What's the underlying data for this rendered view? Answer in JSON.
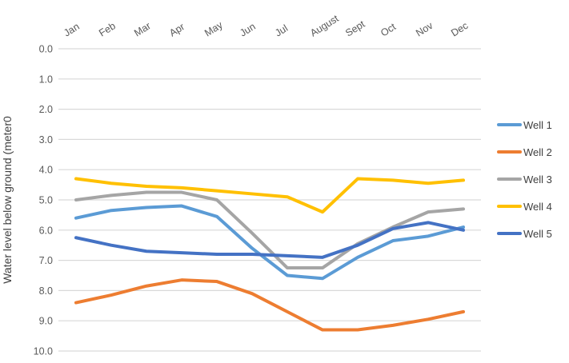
{
  "chart_data": {
    "type": "line",
    "title": "",
    "xlabel": "",
    "ylabel": "Water level below ground (meter0",
    "categories": [
      "Jan",
      "Feb",
      "Mar",
      "Apr",
      "May",
      "Jun",
      "Jul",
      "August",
      "Sept",
      "Oct",
      "Nov",
      "Dec"
    ],
    "series": [
      {
        "name": "Well 1",
        "color": "#5B9BD5",
        "values": [
          5.6,
          5.35,
          5.25,
          5.2,
          5.55,
          6.6,
          7.5,
          7.6,
          6.9,
          6.35,
          6.2,
          5.9
        ]
      },
      {
        "name": "Well 2",
        "color": "#ED7D31",
        "values": [
          8.4,
          8.15,
          7.85,
          7.65,
          7.7,
          8.1,
          8.7,
          9.3,
          9.3,
          9.15,
          8.95,
          8.7
        ]
      },
      {
        "name": "Well 3",
        "color": "#A5A5A5",
        "values": [
          5.0,
          4.85,
          4.75,
          4.75,
          5.0,
          6.1,
          7.25,
          7.25,
          6.45,
          5.9,
          5.4,
          5.3
        ]
      },
      {
        "name": "Well 4",
        "color": "#FFC000",
        "values": [
          4.3,
          4.45,
          4.55,
          4.6,
          4.7,
          4.8,
          4.9,
          5.4,
          4.3,
          4.35,
          4.45,
          4.35
        ]
      },
      {
        "name": "Well 5",
        "color": "#4472C4",
        "values": [
          6.25,
          6.5,
          6.7,
          6.75,
          6.8,
          6.8,
          6.85,
          6.9,
          6.5,
          5.95,
          5.75,
          6.0
        ]
      }
    ],
    "ylim": [
      0,
      10
    ],
    "y_axis": {
      "direction": "down",
      "step": 1,
      "tick_labels": [
        "0.0",
        "1.0",
        "2.0",
        "3.0",
        "4.0",
        "5.0",
        "6.0",
        "7.0",
        "8.0",
        "9.0",
        "10.0"
      ]
    },
    "x_labels_position": "top",
    "x_labels_rotation": -32,
    "grid": "horizontal",
    "legend_position": "right"
  },
  "colors": {
    "background": "#FFFFFF",
    "gridline": "#D9D9D9",
    "tick_label": "#595959",
    "axis_title": "#404040",
    "legend_text": "#404040"
  }
}
